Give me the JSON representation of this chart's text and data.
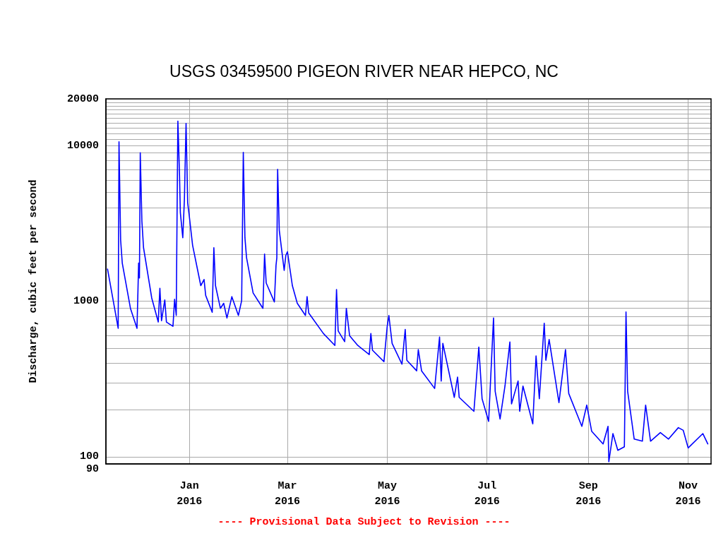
{
  "chart_data": {
    "type": "line",
    "title": "USGS 03459500 PIGEON RIVER NEAR HEPCO, NC",
    "ylabel": "Discharge, cubic feet per second",
    "annotations": [
      "---- Provisional Data Subject to Revision ----"
    ],
    "x": [
      "2015-11-12",
      "2015-11-18T12:00",
      "2015-11-19",
      "2015-11-20",
      "2015-11-21",
      "2015-11-26",
      "2015-11-30",
      "2015-11-30T12:00",
      "2015-12-01",
      "2015-12-01T12:00",
      "2015-12-02",
      "2015-12-03",
      "2015-12-04",
      "2015-12-09",
      "2015-12-13",
      "2015-12-14",
      "2015-12-15",
      "2015-12-17",
      "2015-12-18",
      "2015-12-22",
      "2015-12-23",
      "2015-12-24",
      "2015-12-24T12:00",
      "2015-12-25",
      "2015-12-26",
      "2015-12-26T12:00",
      "2015-12-28",
      "2015-12-29",
      "2015-12-30",
      "2015-12-31",
      "2016-01-01",
      "2016-01-03",
      "2016-01-08",
      "2016-01-10",
      "2016-01-11",
      "2016-01-15",
      "2016-01-16",
      "2016-01-17",
      "2016-01-20",
      "2016-01-22",
      "2016-01-24",
      "2016-01-27",
      "2016-01-31",
      "2016-02-02",
      "2016-02-03",
      "2016-02-04",
      "2016-02-05",
      "2016-02-09",
      "2016-02-15",
      "2016-02-16",
      "2016-02-17",
      "2016-02-22",
      "2016-02-23",
      "2016-02-23T12:00",
      "2016-02-24",
      "2016-02-25",
      "2016-02-28",
      "2016-02-29",
      "2016-03-01",
      "2016-03-04",
      "2016-03-07",
      "2016-03-12",
      "2016-03-13",
      "2016-03-14",
      "2016-03-23",
      "2016-03-30",
      "2016-03-31",
      "2016-04-01",
      "2016-04-05",
      "2016-04-06",
      "2016-04-08",
      "2016-04-13",
      "2016-04-20",
      "2016-04-21",
      "2016-04-22",
      "2016-04-29",
      "2016-05-01",
      "2016-05-02",
      "2016-05-04",
      "2016-05-10",
      "2016-05-12",
      "2016-05-13",
      "2016-05-19",
      "2016-05-20",
      "2016-05-22",
      "2016-05-30",
      "2016-06-02",
      "2016-06-03",
      "2016-06-04",
      "2016-06-11",
      "2016-06-13",
      "2016-06-14",
      "2016-06-23",
      "2016-06-26",
      "2016-06-28",
      "2016-07-02",
      "2016-07-05",
      "2016-07-06",
      "2016-07-09",
      "2016-07-12",
      "2016-07-15",
      "2016-07-16",
      "2016-07-20",
      "2016-07-21",
      "2016-07-23",
      "2016-07-29",
      "2016-07-31",
      "2016-08-02",
      "2016-08-05",
      "2016-08-06",
      "2016-08-08",
      "2016-08-14",
      "2016-08-18",
      "2016-08-20",
      "2016-08-28",
      "2016-08-31",
      "2016-09-03",
      "2016-09-10",
      "2016-09-13",
      "2016-09-13T12:00",
      "2016-09-16",
      "2016-09-19",
      "2016-09-23",
      "2016-09-24",
      "2016-09-25",
      "2016-09-29",
      "2016-10-04",
      "2016-10-06",
      "2016-10-09",
      "2016-10-15",
      "2016-10-20",
      "2016-10-26",
      "2016-10-29",
      "2016-11-01",
      "2016-11-10",
      "2016-11-13"
    ],
    "series": [
      {
        "color": "#0000ff",
        "values": [
          1610,
          670,
          10600,
          2470,
          1760,
          900,
          670,
          1070,
          1760,
          1410,
          9000,
          3260,
          2210,
          1050,
          735,
          1210,
          750,
          1020,
          735,
          690,
          1030,
          810,
          3580,
          14400,
          6500,
          3720,
          2560,
          4550,
          13900,
          4300,
          3510,
          2290,
          1260,
          1380,
          1090,
          850,
          2210,
          1260,
          900,
          970,
          780,
          1070,
          810,
          1010,
          9060,
          2560,
          1900,
          1130,
          900,
          2010,
          1310,
          990,
          1700,
          1900,
          7040,
          2860,
          1580,
          1970,
          2080,
          1260,
          970,
          810,
          1070,
          840,
          620,
          520,
          1190,
          645,
          550,
          900,
          600,
          520,
          454,
          620,
          484,
          409,
          690,
          810,
          536,
          394,
          658,
          417,
          357,
          489,
          357,
          275,
          589,
          307,
          536,
          241,
          325,
          241,
          196,
          507,
          236,
          169,
          780,
          264,
          175,
          285,
          547,
          219,
          307,
          196,
          285,
          163,
          445,
          236,
          722,
          417,
          567,
          223,
          489,
          255,
          157,
          215,
          146,
          121,
          157,
          93,
          141,
          110,
          116,
          853,
          264,
          130,
          126,
          215,
          126,
          143,
          130,
          154,
          148,
          114,
          141,
          121
        ]
      }
    ],
    "xlim": [
      "2015-11-11",
      "2016-11-15"
    ],
    "xticks": [
      {
        "value": "2016-01-01",
        "label": "Jan\n2016"
      },
      {
        "value": "2016-03-01",
        "label": "Mar\n2016"
      },
      {
        "value": "2016-05-01",
        "label": "May\n2016"
      },
      {
        "value": "2016-07-01",
        "label": "Jul\n2016"
      },
      {
        "value": "2016-09-01",
        "label": "Sep\n2016"
      },
      {
        "value": "2016-11-01",
        "label": "Nov\n2016"
      }
    ],
    "ylim": [
      90,
      20000
    ],
    "log": true,
    "yticks": [
      90,
      100,
      {
        "value": 200,
        "label": null
      },
      {
        "value": 300,
        "label": null
      },
      {
        "value": 400,
        "label": null
      },
      {
        "value": 500,
        "label": null
      },
      {
        "value": 600,
        "label": null
      },
      {
        "value": 700,
        "label": null
      },
      {
        "value": 800,
        "label": null
      },
      {
        "value": 900,
        "label": null
      },
      1000,
      {
        "value": 2000,
        "label": null
      },
      {
        "value": 3000,
        "label": null
      },
      {
        "value": 4000,
        "label": null
      },
      {
        "value": 5000,
        "label": null
      },
      {
        "value": 6000,
        "label": null
      },
      {
        "value": 7000,
        "label": null
      },
      {
        "value": 8000,
        "label": null
      },
      {
        "value": 9000,
        "label": null
      },
      10000,
      {
        "value": 11000,
        "label": null
      },
      {
        "value": 12000,
        "label": null
      },
      {
        "value": 13000,
        "label": null
      },
      {
        "value": 14000,
        "label": null
      },
      {
        "value": 15000,
        "label": null
      },
      {
        "value": 16000,
        "label": null
      },
      {
        "value": 17000,
        "label": null
      },
      {
        "value": 18000,
        "label": null
      },
      {
        "value": 19000,
        "label": null
      },
      20000
    ],
    "grid": true,
    "marker": "none",
    "line_style": "solid"
  }
}
